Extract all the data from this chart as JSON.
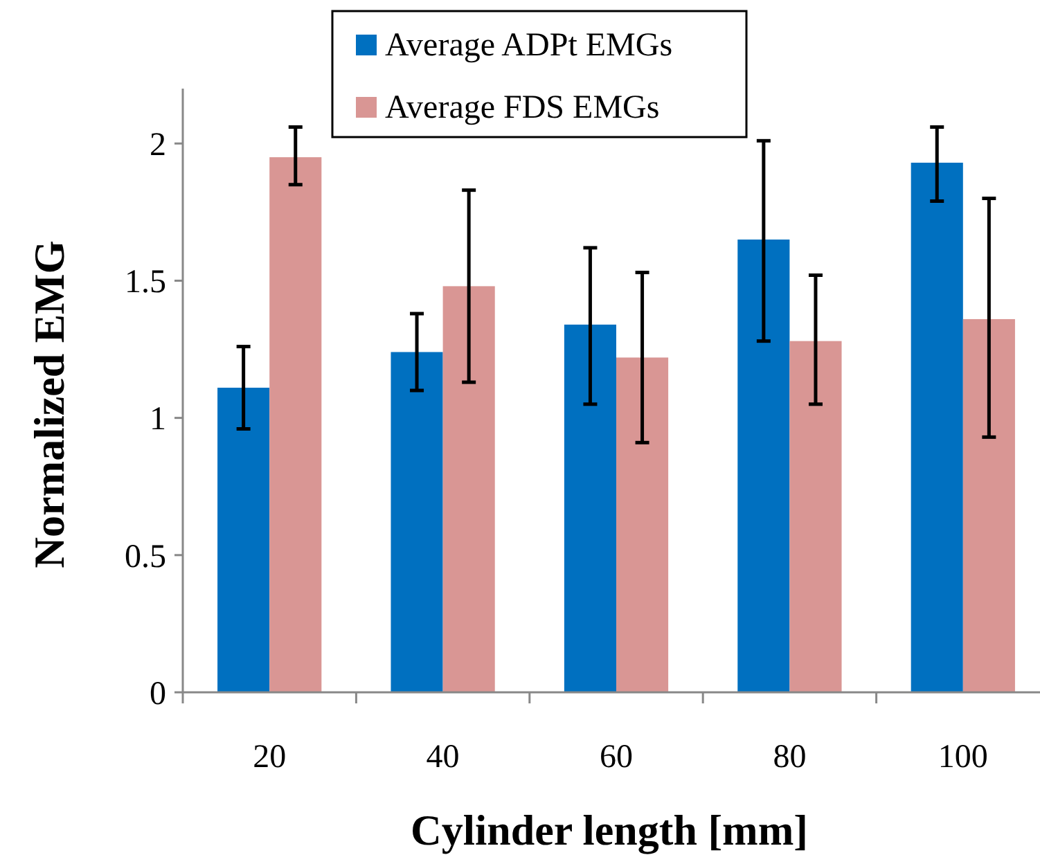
{
  "chart_data": {
    "type": "bar",
    "xlabel": "Cylinder length [mm]",
    "ylabel": "Normalized EMG",
    "categories": [
      "20",
      "40",
      "60",
      "80",
      "100"
    ],
    "series": [
      {
        "name": "Average ADPt EMGs",
        "color": "#0070c0",
        "values": [
          1.11,
          1.24,
          1.34,
          1.65,
          1.93
        ],
        "errors": [
          [
            0.96,
            1.26
          ],
          [
            1.1,
            1.38
          ],
          [
            1.05,
            1.62
          ],
          [
            1.28,
            2.01
          ],
          [
            1.79,
            2.06
          ]
        ]
      },
      {
        "name": "Average FDS EMGs",
        "color": "#d99694",
        "values": [
          1.95,
          1.48,
          1.22,
          1.28,
          1.36
        ],
        "errors": [
          [
            1.85,
            2.06
          ],
          [
            1.13,
            1.83
          ],
          [
            0.91,
            1.53
          ],
          [
            1.05,
            1.52
          ],
          [
            0.93,
            1.8
          ]
        ]
      }
    ],
    "ylim": [
      0,
      2.2
    ],
    "yticks": [
      0,
      0.5,
      1,
      1.5,
      2
    ],
    "grid": false,
    "legend": "top"
  }
}
